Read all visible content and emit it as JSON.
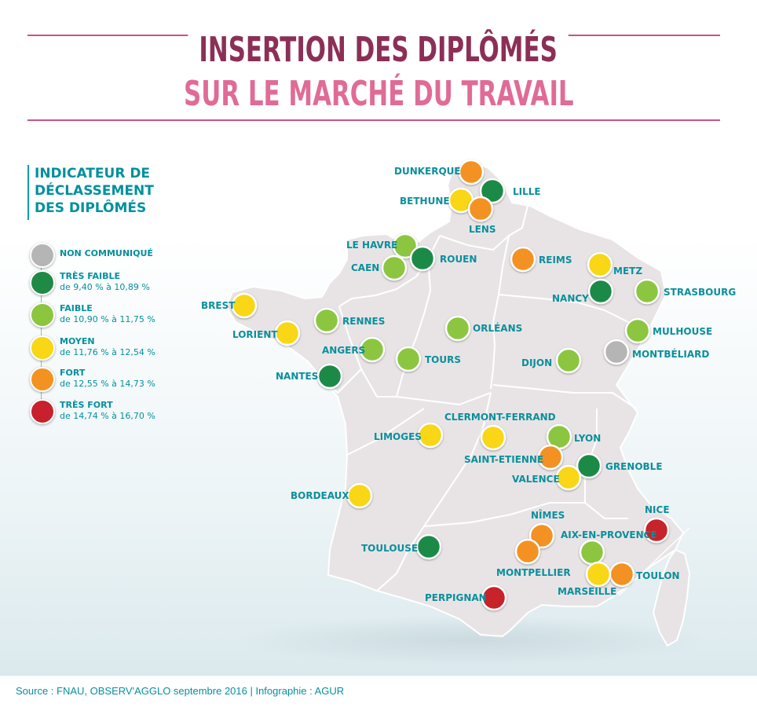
{
  "title": {
    "line1": "INSERTION DES DIPLÔMÉS",
    "line2": "SUR LE MARCHÉ DU TRAVAIL"
  },
  "legend": {
    "title_lines": [
      "INDICATEUR DE",
      "DÉCLASSEMENT",
      "DES DIPLÔMÉS"
    ],
    "items": [
      {
        "label": "NON COMMUNIQUÉ",
        "range": "",
        "color": "#b5b5b5"
      },
      {
        "label": "TRÈS FAIBLE",
        "range": "de 9,40 % à 10,89 %",
        "color": "#1f8a46"
      },
      {
        "label": "FAIBLE",
        "range": "de 10,90 % à 11,75 %",
        "color": "#8cc63f"
      },
      {
        "label": "MOYEN",
        "range": "de 11,76 % à 12,54 %",
        "color": "#f9d616"
      },
      {
        "label": "FORT",
        "range": "de 12,55 % à 14,73 %",
        "color": "#f39221"
      },
      {
        "label": "TRÈS FORT",
        "range": "de 14,74 % à 16,70 %",
        "color": "#c8202c"
      }
    ]
  },
  "cities": [
    {
      "name": "DUNKERQUE",
      "level": 4
    },
    {
      "name": "LILLE",
      "level": 1
    },
    {
      "name": "BETHUNE",
      "level": 3
    },
    {
      "name": "LENS",
      "level": 4
    },
    {
      "name": "LE HAVRE",
      "level": 2
    },
    {
      "name": "ROUEN",
      "level": 1
    },
    {
      "name": "CAEN",
      "level": 2
    },
    {
      "name": "REIMS",
      "level": 4
    },
    {
      "name": "METZ",
      "level": 3
    },
    {
      "name": "NANCY",
      "level": 1
    },
    {
      "name": "STRASBOURG",
      "level": 2
    },
    {
      "name": "BREST",
      "level": 3
    },
    {
      "name": "RENNES",
      "level": 2
    },
    {
      "name": "LORIENT",
      "level": 3
    },
    {
      "name": "ORLÉANS",
      "level": 2
    },
    {
      "name": "MULHOUSE",
      "level": 2
    },
    {
      "name": "ANGERS",
      "level": 2
    },
    {
      "name": "TOURS",
      "level": 2
    },
    {
      "name": "DIJON",
      "level": 2
    },
    {
      "name": "MONTBÉLIARD",
      "level": 0
    },
    {
      "name": "NANTES",
      "level": 1
    },
    {
      "name": "CLERMONT-FERRAND",
      "level": 3
    },
    {
      "name": "LIMOGES",
      "level": 3
    },
    {
      "name": "LYON",
      "level": 2
    },
    {
      "name": "SAINT-ETIENNE",
      "level": 4
    },
    {
      "name": "GRENOBLE",
      "level": 1
    },
    {
      "name": "VALENCE",
      "level": 3
    },
    {
      "name": "BORDEAUX",
      "level": 3
    },
    {
      "name": "NICE",
      "level": 5
    },
    {
      "name": "NÎMES",
      "level": 4
    },
    {
      "name": "AIX-EN-PROVENCE",
      "level": 2
    },
    {
      "name": "TOULOUSE",
      "level": 1
    },
    {
      "name": "MONTPELLIER",
      "level": 4
    },
    {
      "name": "TOULON",
      "level": 4
    },
    {
      "name": "MARSEILLE",
      "level": 3
    },
    {
      "name": "PERPIGNAN",
      "level": 5
    }
  ],
  "source": "Source : FNAU, OBSERV'AGGLO septembre 2016 | Infographie : AGUR"
}
